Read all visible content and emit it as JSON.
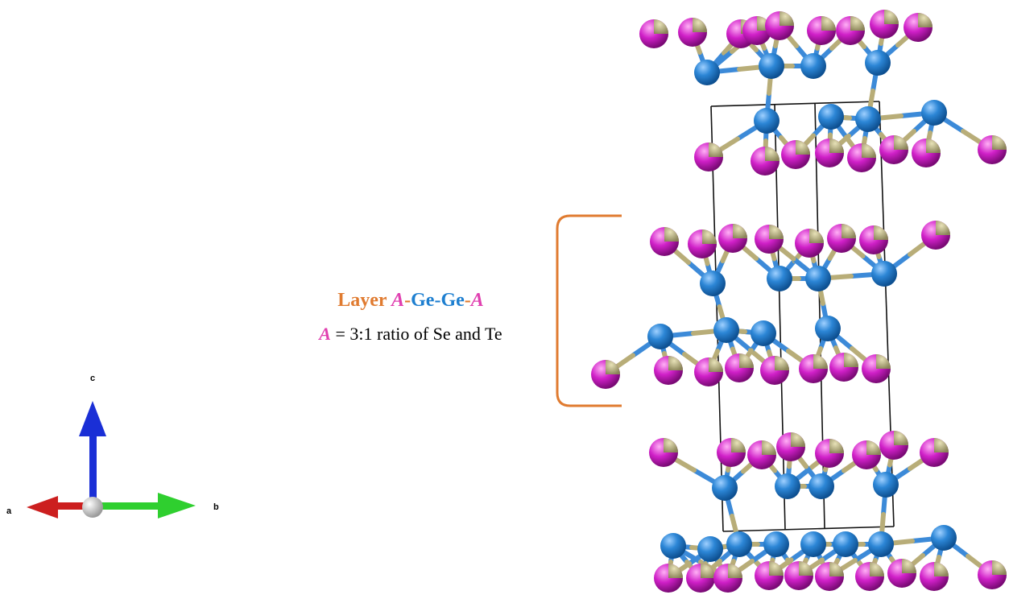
{
  "axes": {
    "a": "a",
    "b": "b",
    "c": "c",
    "colors": {
      "a": "#cc1f1f",
      "b": "#2fcf2f",
      "c": "#1a2fd6",
      "origin": "#d8d8d8"
    }
  },
  "annotation": {
    "title_parts": [
      {
        "text": "Layer ",
        "color": "orange"
      },
      {
        "text": "A",
        "color": "pink"
      },
      {
        "text": "-",
        "color": "orange"
      },
      {
        "text": "Ge-Ge",
        "color": "blue"
      },
      {
        "text": "-",
        "color": "orange"
      },
      {
        "text": "A",
        "color": "pink"
      }
    ],
    "ratio_symbol": "A",
    "ratio_text": " = 3:1 ratio of Se and Te",
    "bracket_color": "#e07b30"
  },
  "atoms": {
    "ge_color": "#2c86d6",
    "chalcogen_se_color": "#d020c8",
    "chalcogen_te_color": "#a8a070",
    "bond_color": "#3c8ad8"
  }
}
